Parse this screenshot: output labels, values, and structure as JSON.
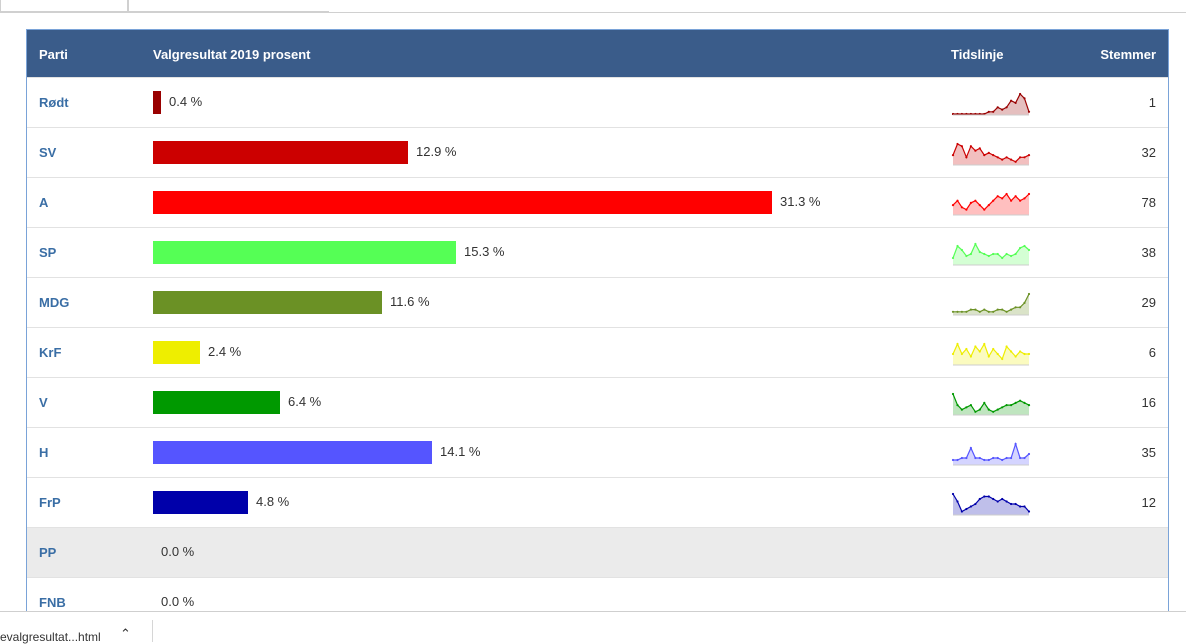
{
  "header": {
    "party": "Parti",
    "result": "Valgresultat 2019 prosent",
    "timeline": "Tidslinje",
    "votes": "Stemmer"
  },
  "bar_scale_max": 31.3,
  "rows": [
    {
      "party": "Rødt",
      "pct": 0.4,
      "pct_label": "0.4 %",
      "votes": "1",
      "color": "#990000",
      "spark": [
        0,
        0,
        0,
        0,
        0,
        0,
        0,
        0,
        1,
        1,
        3,
        2,
        3,
        6,
        5,
        9,
        7,
        1
      ]
    },
    {
      "party": "SV",
      "pct": 12.9,
      "pct_label": "12.9 %",
      "votes": "32",
      "color": "#cc0000",
      "spark": [
        4,
        9,
        8,
        3,
        8,
        6,
        7,
        4,
        5,
        4,
        3,
        2,
        3,
        2,
        1,
        3,
        3,
        4
      ]
    },
    {
      "party": "A",
      "pct": 31.3,
      "pct_label": "31.3 %",
      "votes": "78",
      "color": "#ff0000",
      "spark": [
        4,
        6,
        3,
        2,
        5,
        6,
        4,
        2,
        4,
        6,
        8,
        7,
        9,
        6,
        8,
        6,
        7,
        9
      ]
    },
    {
      "party": "SP",
      "pct": 15.3,
      "pct_label": "15.3 %",
      "votes": "38",
      "color": "#55ff55",
      "spark": [
        3,
        9,
        7,
        4,
        5,
        10,
        6,
        5,
        4,
        5,
        5,
        3,
        5,
        4,
        5,
        8,
        9,
        7
      ]
    },
    {
      "party": "MDG",
      "pct": 11.6,
      "pct_label": "11.6 %",
      "votes": "29",
      "color": "#6b9125",
      "spark": [
        1,
        1,
        1,
        1,
        2,
        2,
        1,
        2,
        1,
        1,
        2,
        2,
        1,
        2,
        3,
        3,
        5,
        9
      ]
    },
    {
      "party": "KrF",
      "pct": 2.4,
      "pct_label": "2.4 %",
      "votes": "6",
      "color": "#eeee00",
      "spark": [
        4,
        8,
        4,
        6,
        3,
        7,
        5,
        8,
        3,
        6,
        4,
        2,
        7,
        5,
        3,
        5,
        4,
        4
      ]
    },
    {
      "party": "V",
      "pct": 6.4,
      "pct_label": "6.4 %",
      "votes": "16",
      "color": "#009900",
      "spark": [
        9,
        4,
        2,
        3,
        4,
        1,
        2,
        5,
        2,
        1,
        2,
        3,
        4,
        4,
        5,
        6,
        5,
        4
      ]
    },
    {
      "party": "H",
      "pct": 14.1,
      "pct_label": "14.1 %",
      "votes": "35",
      "color": "#5555ff",
      "spark": [
        2,
        2,
        3,
        3,
        8,
        3,
        3,
        2,
        2,
        3,
        3,
        2,
        3,
        3,
        10,
        3,
        3,
        5
      ]
    },
    {
      "party": "FrP",
      "pct": 4.8,
      "pct_label": "4.8 %",
      "votes": "12",
      "color": "#0000aa",
      "spark": [
        8,
        5,
        1,
        2,
        3,
        4,
        6,
        7,
        7,
        6,
        5,
        6,
        5,
        4,
        4,
        3,
        3,
        1
      ]
    },
    {
      "party": "PP",
      "pct": 0.0,
      "pct_label": "0.0 %",
      "votes": "",
      "color": "#999999",
      "spark": null
    },
    {
      "party": "FNB",
      "pct": 0.0,
      "pct_label": "0.0 %",
      "votes": "",
      "color": "#999999",
      "spark": null
    }
  ],
  "download": {
    "filename": "evalgresultat...html"
  }
}
